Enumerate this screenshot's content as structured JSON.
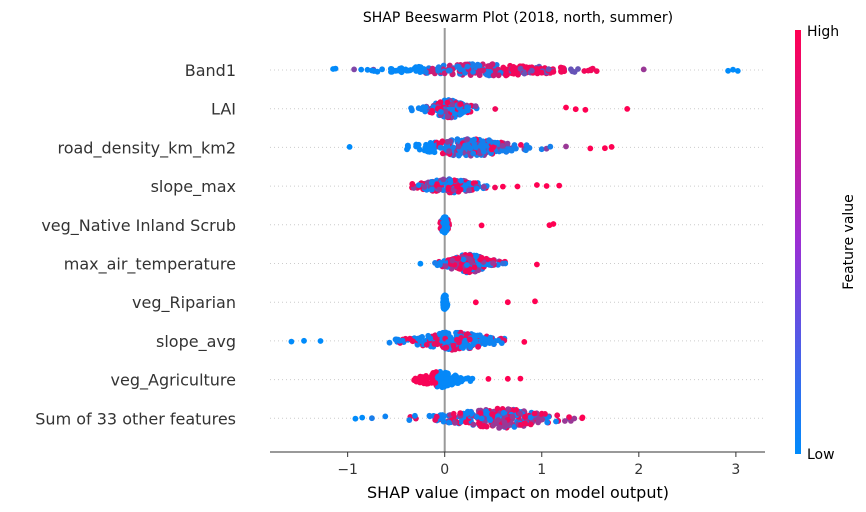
{
  "chart_data": {
    "type": "scatter",
    "subtype": "shap-beeswarm",
    "title": "SHAP Beeswarm Plot (2018, north, summer)",
    "xlabel": "SHAP value (impact on model output)",
    "xlim": [
      -1.8,
      3.3
    ],
    "xticks": [
      -1,
      0,
      1,
      2,
      3
    ],
    "xtick_labels": [
      "−1",
      "0",
      "1",
      "2",
      "3"
    ],
    "colorbar": {
      "label": "Feature value",
      "high": "High",
      "low": "Low",
      "low_color": "#008bfb",
      "high_color": "#ff0052"
    },
    "features": [
      {
        "name": "Band1",
        "min": -1.15,
        "max": 3.05,
        "center": 0.4,
        "spread": 0.55,
        "count": 260,
        "amp": 6,
        "color_mode": "high_right",
        "outliers": [
          [
            -1.15,
            0.0
          ],
          [
            2.05,
            0.6
          ],
          [
            2.92,
            0.0
          ],
          [
            2.97,
            0.0
          ],
          [
            3.02,
            0.0
          ]
        ]
      },
      {
        "name": "LAI",
        "min": -0.35,
        "max": 1.88,
        "center": 0.05,
        "spread": 0.12,
        "count": 170,
        "amp": 9,
        "color_mode": "mixed_center",
        "outliers": [
          [
            0.52,
            0.95
          ],
          [
            1.25,
            1.0
          ],
          [
            1.35,
            1.0
          ],
          [
            1.45,
            1.0
          ],
          [
            1.88,
            1.0
          ]
        ]
      },
      {
        "name": "road_density_km_km2",
        "min": -0.98,
        "max": 1.72,
        "center": 0.25,
        "spread": 0.3,
        "count": 240,
        "amp": 9,
        "color_mode": "low_center",
        "outliers": [
          [
            -0.98,
            0.0
          ],
          [
            1.25,
            0.6
          ],
          [
            1.5,
            1.0
          ],
          [
            1.65,
            1.0
          ],
          [
            1.72,
            1.0
          ]
        ]
      },
      {
        "name": "slope_max",
        "min": -0.35,
        "max": 1.18,
        "center": 0.05,
        "spread": 0.2,
        "count": 160,
        "amp": 7,
        "color_mode": "mixed_center",
        "outliers": [
          [
            0.6,
            1.0
          ],
          [
            0.75,
            1.0
          ],
          [
            0.95,
            1.0
          ],
          [
            1.05,
            1.0
          ],
          [
            1.18,
            1.0
          ]
        ]
      },
      {
        "name": "veg_Native Inland Scrub",
        "min": -0.1,
        "max": 1.15,
        "center": 0.0,
        "spread": 0.02,
        "count": 110,
        "amp": 8,
        "color_mode": "zero_low",
        "outliers": [
          [
            1.08,
            1.0
          ],
          [
            1.12,
            1.0
          ],
          [
            0.38,
            1.0
          ]
        ]
      },
      {
        "name": "max_air_temperature",
        "min": -0.25,
        "max": 0.97,
        "center": 0.25,
        "spread": 0.15,
        "count": 200,
        "amp": 9,
        "color_mode": "mixed_warm",
        "outliers": [
          [
            -0.25,
            0.0
          ],
          [
            0.95,
            1.0
          ],
          [
            0.6,
            0.2
          ],
          [
            -0.1,
            0.1
          ]
        ]
      },
      {
        "name": "veg_Riparian",
        "min": -0.02,
        "max": 0.93,
        "center": 0.0,
        "spread": 0.01,
        "count": 80,
        "amp": 7,
        "color_mode": "zero_low",
        "outliers": [
          [
            0.65,
            1.0
          ],
          [
            0.93,
            1.0
          ],
          [
            0.32,
            1.0
          ]
        ]
      },
      {
        "name": "slope_avg",
        "min": -1.58,
        "max": 0.82,
        "center": 0.1,
        "spread": 0.25,
        "count": 220,
        "amp": 9,
        "color_mode": "low_mix",
        "outliers": [
          [
            -1.58,
            0.0
          ],
          [
            -1.45,
            0.0
          ],
          [
            -1.28,
            0.0
          ],
          [
            0.82,
            1.0
          ]
        ]
      },
      {
        "name": "veg_Agriculture",
        "min": -0.33,
        "max": 0.78,
        "center": -0.05,
        "spread": 0.12,
        "count": 120,
        "amp": 8,
        "color_mode": "agri",
        "outliers": [
          [
            0.45,
            1.0
          ],
          [
            0.65,
            1.0
          ],
          [
            0.78,
            1.0
          ]
        ]
      },
      {
        "name": "Sum of 33 other features",
        "min": -0.92,
        "max": 1.42,
        "center": 0.55,
        "spread": 0.35,
        "count": 260,
        "amp": 10,
        "color_mode": "mixed_warm",
        "outliers": [
          [
            -0.92,
            0.0
          ],
          [
            -0.85,
            0.0
          ],
          [
            -0.75,
            0.1
          ],
          [
            1.42,
            1.0
          ]
        ]
      }
    ]
  }
}
